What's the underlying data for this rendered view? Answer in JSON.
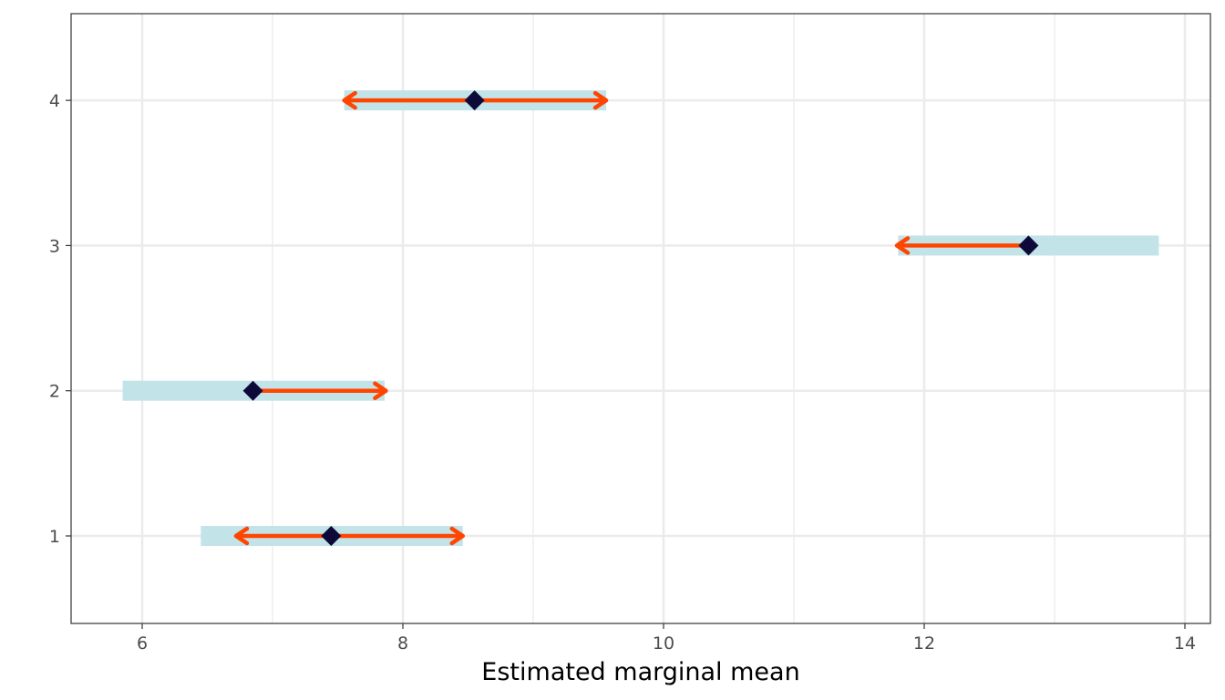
{
  "chart_data": {
    "type": "interval",
    "title": "",
    "xlabel": "Estimated marginal mean",
    "ylabel": "",
    "xlim": [
      5.45,
      14.2
    ],
    "ylim": [
      0.4,
      4.6
    ],
    "x_ticks": [
      6,
      8,
      10,
      12,
      14
    ],
    "x_tick_labels": [
      "6",
      "8",
      "10",
      "12",
      "14"
    ],
    "y_categories": [
      "1",
      "2",
      "3",
      "4"
    ],
    "grid": true,
    "series": [
      {
        "name": "1",
        "emmean": 7.45,
        "lower_CL": 6.45,
        "upper_CL": 8.46,
        "arrow_left": 6.72,
        "arrow_right": 8.46
      },
      {
        "name": "2",
        "emmean": 6.85,
        "lower_CL": 5.85,
        "upper_CL": 7.86,
        "arrow_left": null,
        "arrow_right": 7.87
      },
      {
        "name": "3",
        "emmean": 12.8,
        "lower_CL": 11.8,
        "upper_CL": 13.8,
        "arrow_left": 11.79,
        "arrow_right": null
      },
      {
        "name": "4",
        "emmean": 8.55,
        "lower_CL": 7.55,
        "upper_CL": 9.56,
        "arrow_left": 7.55,
        "arrow_right": 9.56
      }
    ],
    "colors": {
      "ci_bar": "#c2e3e8",
      "arrow": "#ff4500",
      "point": "#0d0a3a",
      "grid": "#ebebeb"
    }
  }
}
